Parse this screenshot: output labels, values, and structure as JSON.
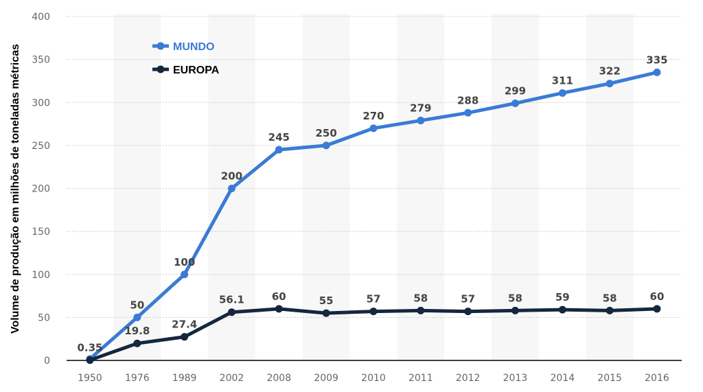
{
  "chart_data": {
    "type": "line",
    "title": "",
    "xlabel": "",
    "ylabel": "Volume de produção em milhões de toneladas métricas",
    "ylim": [
      0,
      400
    ],
    "yticks": [
      0,
      50,
      100,
      150,
      200,
      250,
      300,
      350,
      400
    ],
    "categories": [
      "1950",
      "1976",
      "1989",
      "2002",
      "2008",
      "2009",
      "2010",
      "2011",
      "2012",
      "2013",
      "2014",
      "2015",
      "2016"
    ],
    "grid": true,
    "legend_position": "top-left",
    "series": [
      {
        "name": "MUNDO",
        "color": "#3a7bd5",
        "values": [
          1.7,
          50,
          100,
          200,
          245,
          250,
          270,
          279,
          288,
          299,
          311,
          322,
          335
        ],
        "labels": [
          null,
          "50",
          "100",
          "200",
          "245",
          "250",
          "270",
          "279",
          "288",
          "299",
          "311",
          "322",
          "335"
        ]
      },
      {
        "name": "EUROPA",
        "color": "#14273d",
        "values": [
          0.35,
          19.8,
          27.4,
          56.1,
          60,
          55,
          57,
          58,
          57,
          58,
          59,
          58,
          60
        ],
        "labels": [
          "0.35",
          "19.8",
          "27.4",
          "56.1",
          "60",
          "55",
          "57",
          "58",
          "57",
          "58",
          "59",
          "58",
          "60"
        ]
      }
    ]
  }
}
